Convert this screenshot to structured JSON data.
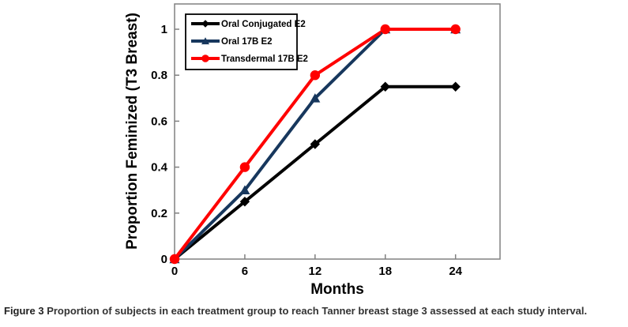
{
  "figure": {
    "caption_label": "Figure 3",
    "caption_text": "Proportion of subjects in each treatment group to reach Tanner breast stage 3 assessed at each study interval."
  },
  "chart_data": {
    "type": "line",
    "x": [
      0,
      6,
      12,
      18,
      24
    ],
    "series": [
      {
        "name": "Oral Conjugated E2",
        "color": "#000000",
        "marker": "diamond",
        "values": [
          0,
          0.25,
          0.5,
          0.75,
          0.75
        ]
      },
      {
        "name": "Oral 17B E2",
        "color": "#17375D",
        "marker": "triangle",
        "values": [
          0,
          0.3,
          0.7,
          1.0,
          1.0
        ]
      },
      {
        "name": "Transdermal 17B E2",
        "color": "#FF0000",
        "marker": "circle",
        "values": [
          0,
          0.4,
          0.8,
          1.0,
          1.0
        ]
      }
    ],
    "title": "",
    "xlabel": "Months",
    "ylabel": "Proportion Feminized (T3 Breast)",
    "xticks": [
      0,
      6,
      12,
      18,
      24
    ],
    "yticks": [
      0,
      0.2,
      0.4,
      0.6,
      0.8,
      1
    ],
    "xlim": [
      0,
      27.8
    ],
    "ylim": [
      0,
      1.11
    ],
    "grid": false,
    "legend_position": "top-left",
    "axis_color": "#808080",
    "tick_label_color": "#000000"
  }
}
